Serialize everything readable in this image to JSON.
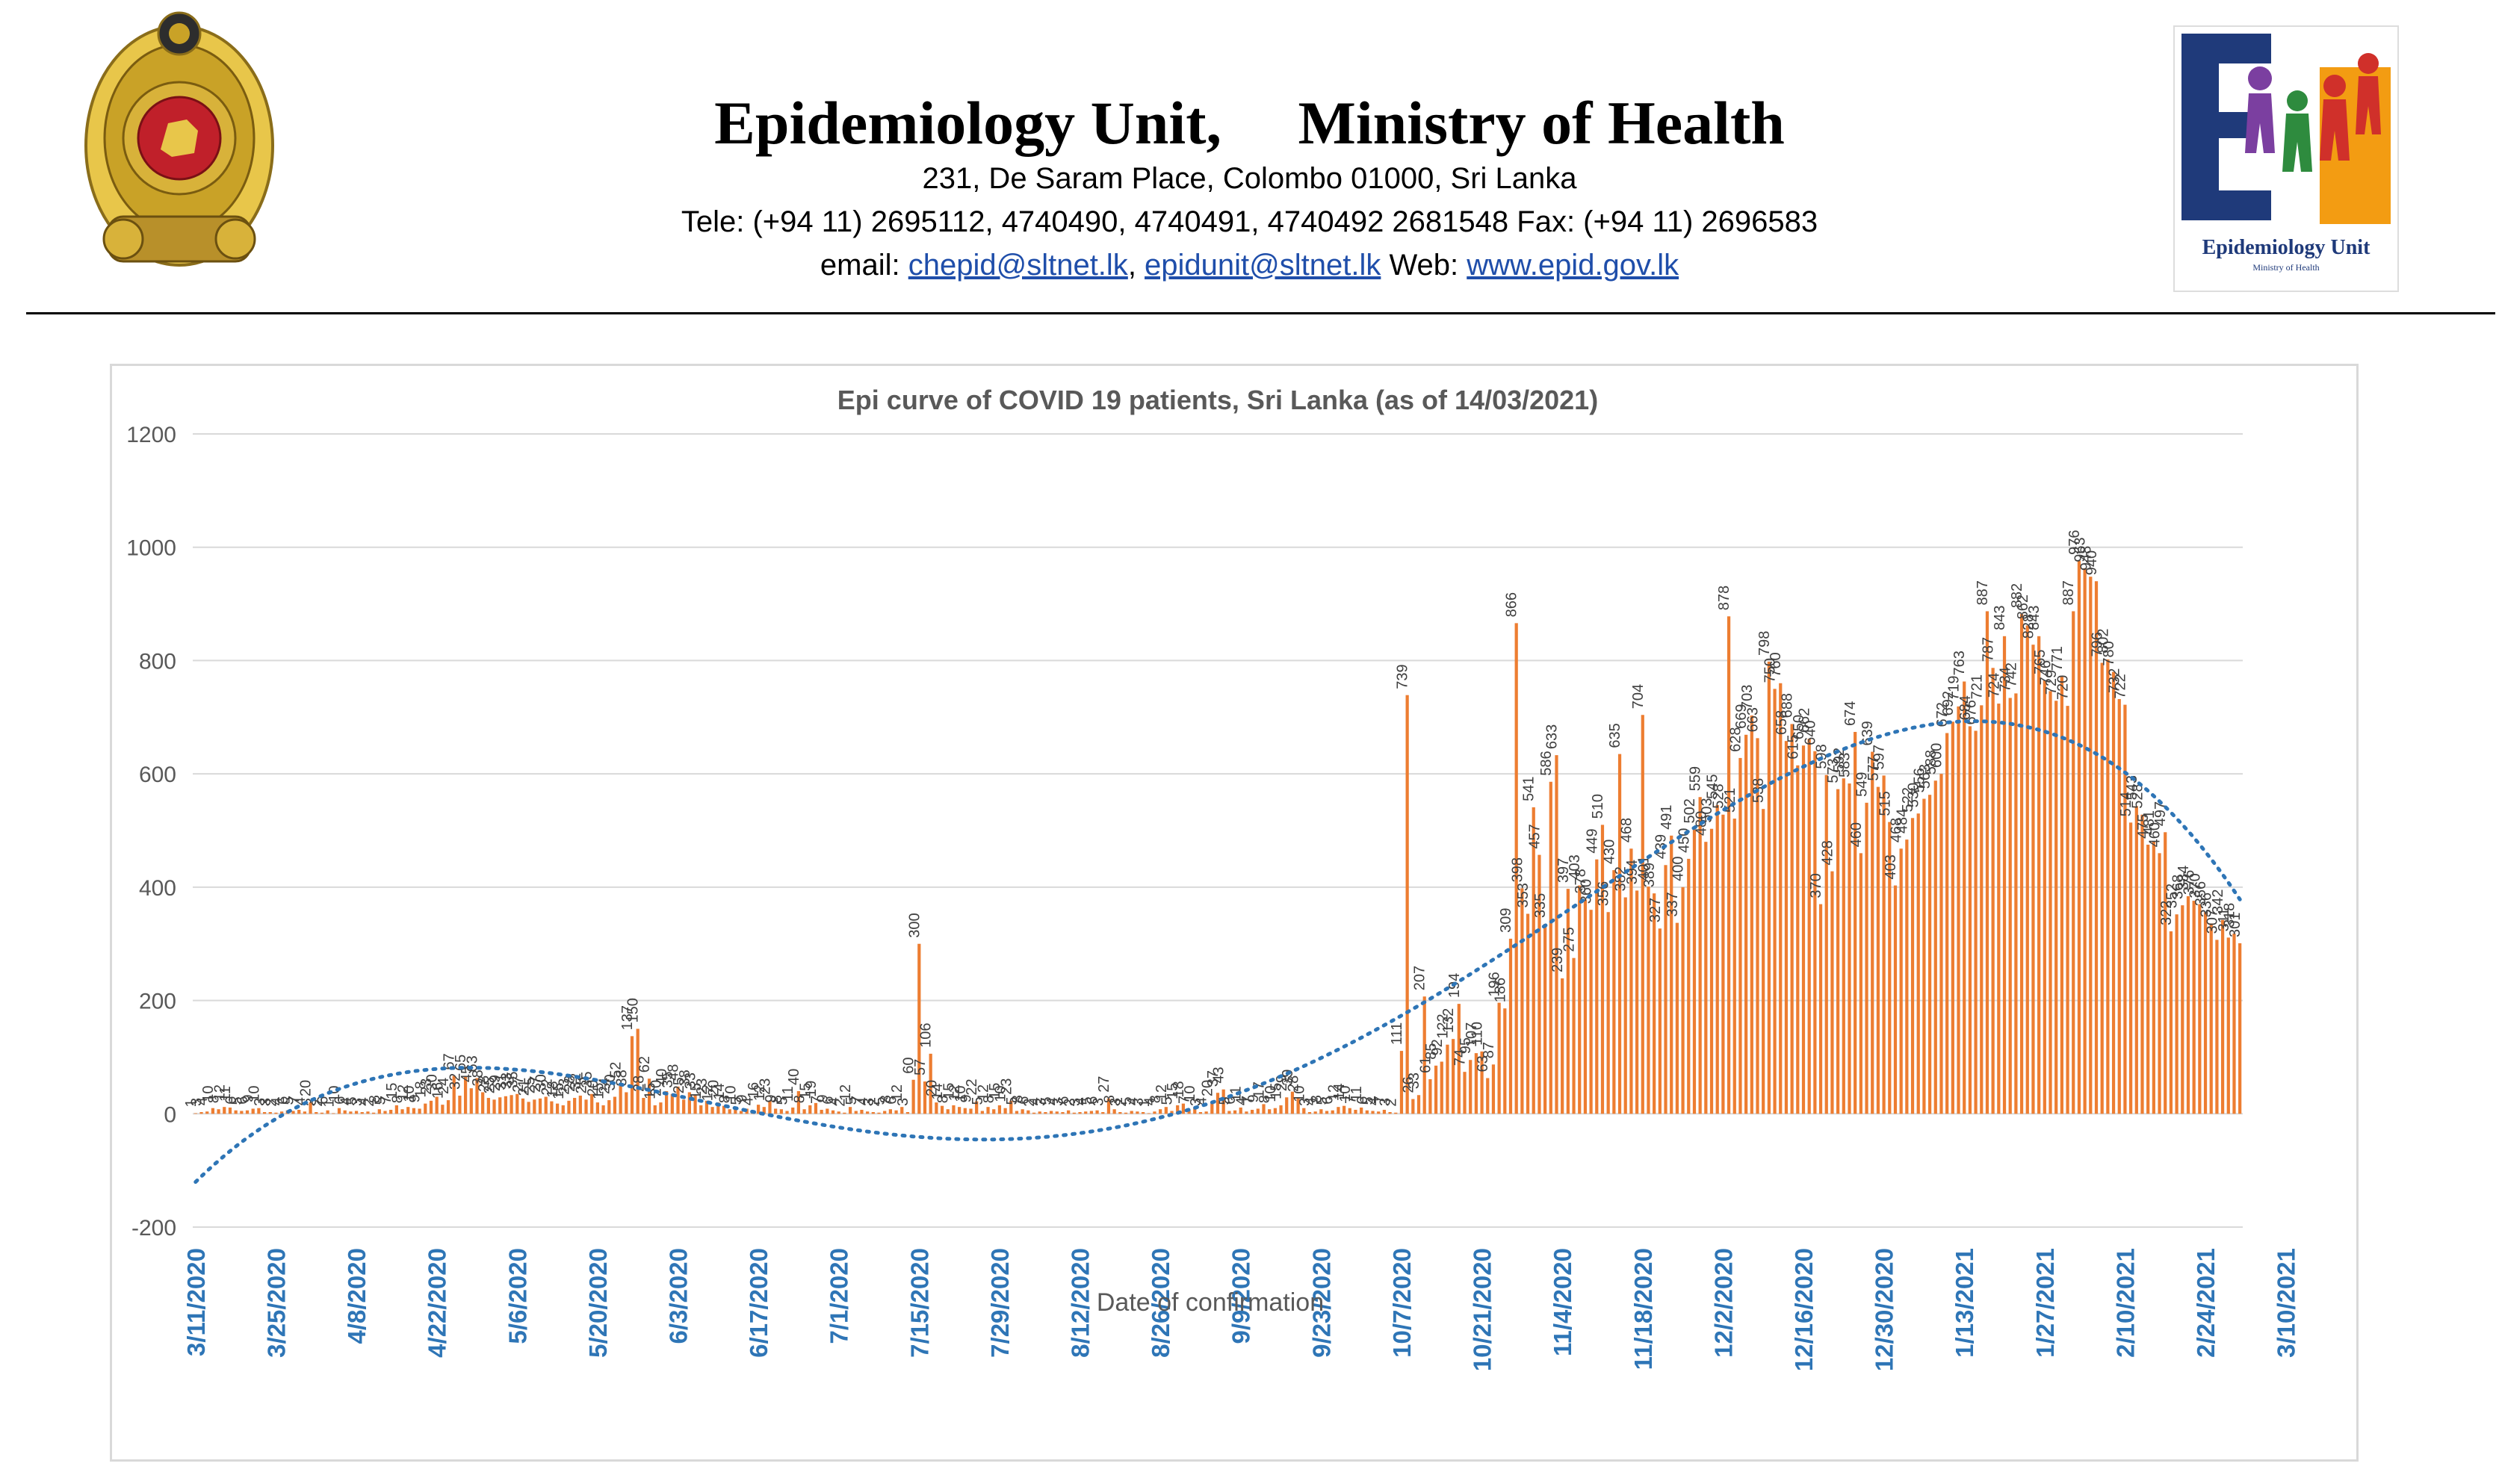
{
  "header": {
    "title": "Epidemiology Unit,     Ministry of Health",
    "address": "231, De Saram Place, Colombo 01000, Sri Lanka",
    "tele": "Tele: (+94 11) 2695112, 4740490, 4740491, 4740492 2681548  Fax: (+94 11) 2696583",
    "email_prefix": "email: ",
    "email1": "chepid@sltnet.lk",
    "email_sep": ", ",
    "email2": "epidunit@sltnet.lk",
    "web_prefix": " Web: ",
    "web": "www.epid.gov.lk",
    "logo_text": "Epidemiology Unit",
    "logo_subtext": "Ministry of Health"
  },
  "colors": {
    "bar": "#ed7d31",
    "trend": "#2e75b6",
    "date_label": "#2e75b6",
    "axis_text": "#595959",
    "grid": "#d9d9d9",
    "link": "#1f4eaa"
  },
  "chart_data": {
    "type": "bar",
    "title": "Epi curve of COVID 19 patients, Sri Lanka  (as of 14/03/2021)",
    "xlabel": "Date of confirmation",
    "ylabel": "",
    "ylim": [
      -200,
      1200
    ],
    "yticks": [
      -200,
      0,
      200,
      400,
      600,
      800,
      1000,
      1200
    ],
    "grid": true,
    "trendline": "polynomial (dotted)",
    "x_tick_labels": [
      "3/11/2020",
      "3/25/2020",
      "4/8/2020",
      "4/22/2020",
      "5/6/2020",
      "5/20/2020",
      "6/3/2020",
      "6/17/2020",
      "7/1/2020",
      "7/15/2020",
      "7/29/2020",
      "8/12/2020",
      "8/26/2020",
      "9/9/2020",
      "9/23/2020",
      "10/7/2020",
      "10/21/2020",
      "11/4/2020",
      "11/18/2020",
      "12/2/2020",
      "12/16/2020",
      "12/30/2020",
      "1/13/2021",
      "1/27/2021",
      "2/10/2021",
      "2/24/2021",
      "3/10/2021"
    ],
    "start_date": "3/11/2020",
    "values": [
      1,
      3,
      4,
      10,
      8,
      12,
      11,
      6,
      5,
      6,
      9,
      10,
      3,
      3,
      2,
      4,
      6,
      5,
      7,
      4,
      20,
      3,
      2,
      6,
      1,
      10,
      6,
      4,
      5,
      3,
      4,
      2,
      8,
      5,
      7,
      15,
      8,
      12,
      10,
      9,
      18,
      23,
      30,
      16,
      24,
      67,
      32,
      65,
      45,
      63,
      38,
      28,
      25,
      29,
      31,
      33,
      35,
      27,
      21,
      25,
      27,
      30,
      22,
      18,
      15,
      23,
      28,
      32,
      25,
      35,
      20,
      15,
      24,
      30,
      52,
      38,
      137,
      150,
      28,
      62,
      15,
      20,
      40,
      35,
      48,
      25,
      38,
      33,
      15,
      23,
      12,
      20,
      14,
      8,
      10,
      5,
      9,
      4,
      16,
      12,
      23,
      9,
      8,
      5,
      11,
      40,
      8,
      15,
      19,
      7,
      9,
      6,
      4,
      2,
      12,
      5,
      7,
      4,
      3,
      2,
      5,
      8,
      6,
      12,
      3,
      60,
      300,
      57,
      106,
      20,
      14,
      8,
      15,
      12,
      10,
      9,
      22,
      5,
      12,
      8,
      15,
      10,
      23,
      5,
      8,
      6,
      2,
      4,
      3,
      5,
      4,
      3,
      6,
      2,
      3,
      4,
      5,
      6,
      3,
      27,
      8,
      3,
      2,
      5,
      4,
      3,
      1,
      4,
      8,
      12,
      5,
      15,
      18,
      7,
      10,
      3,
      4,
      20,
      37,
      43,
      5,
      6,
      11,
      4,
      7,
      9,
      17,
      8,
      10,
      15,
      29,
      39,
      28,
      10,
      3,
      4,
      8,
      5,
      6,
      12,
      14,
      10,
      7,
      11,
      6,
      5,
      4,
      7,
      3,
      2,
      111,
      739,
      26,
      33,
      207,
      61,
      85,
      92,
      122,
      132,
      194,
      74,
      95,
      107,
      110,
      63,
      87,
      196,
      186,
      309,
      866,
      398,
      353,
      541,
      457,
      335,
      586,
      633,
      239,
      397,
      275,
      403,
      378,
      360,
      449,
      510,
      356,
      430,
      635,
      382,
      468,
      394,
      704,
      401,
      389,
      327,
      439,
      491,
      337,
      400,
      450,
      502,
      559,
      480,
      503,
      545,
      528,
      878,
      521,
      628,
      669,
      703,
      663,
      538,
      798,
      750,
      760,
      658,
      688,
      615,
      650,
      662,
      640,
      370,
      598,
      428,
      573,
      592,
      583,
      674,
      460,
      549,
      639,
      577,
      597,
      515,
      403,
      468,
      484,
      522,
      530,
      556,
      563,
      588,
      600,
      672,
      692,
      719,
      763,
      684,
      676,
      721,
      887,
      787,
      724,
      843,
      734,
      742,
      882,
      862,
      828,
      843,
      765,
      746,
      729,
      771,
      720,
      887,
      976,
      963,
      948,
      940,
      796,
      802,
      780,
      732,
      722,
      514,
      543,
      528,
      475,
      481,
      460,
      497,
      322,
      352,
      368,
      384,
      376,
      370,
      356,
      336,
      307,
      342,
      311,
      318,
      301
    ]
  }
}
